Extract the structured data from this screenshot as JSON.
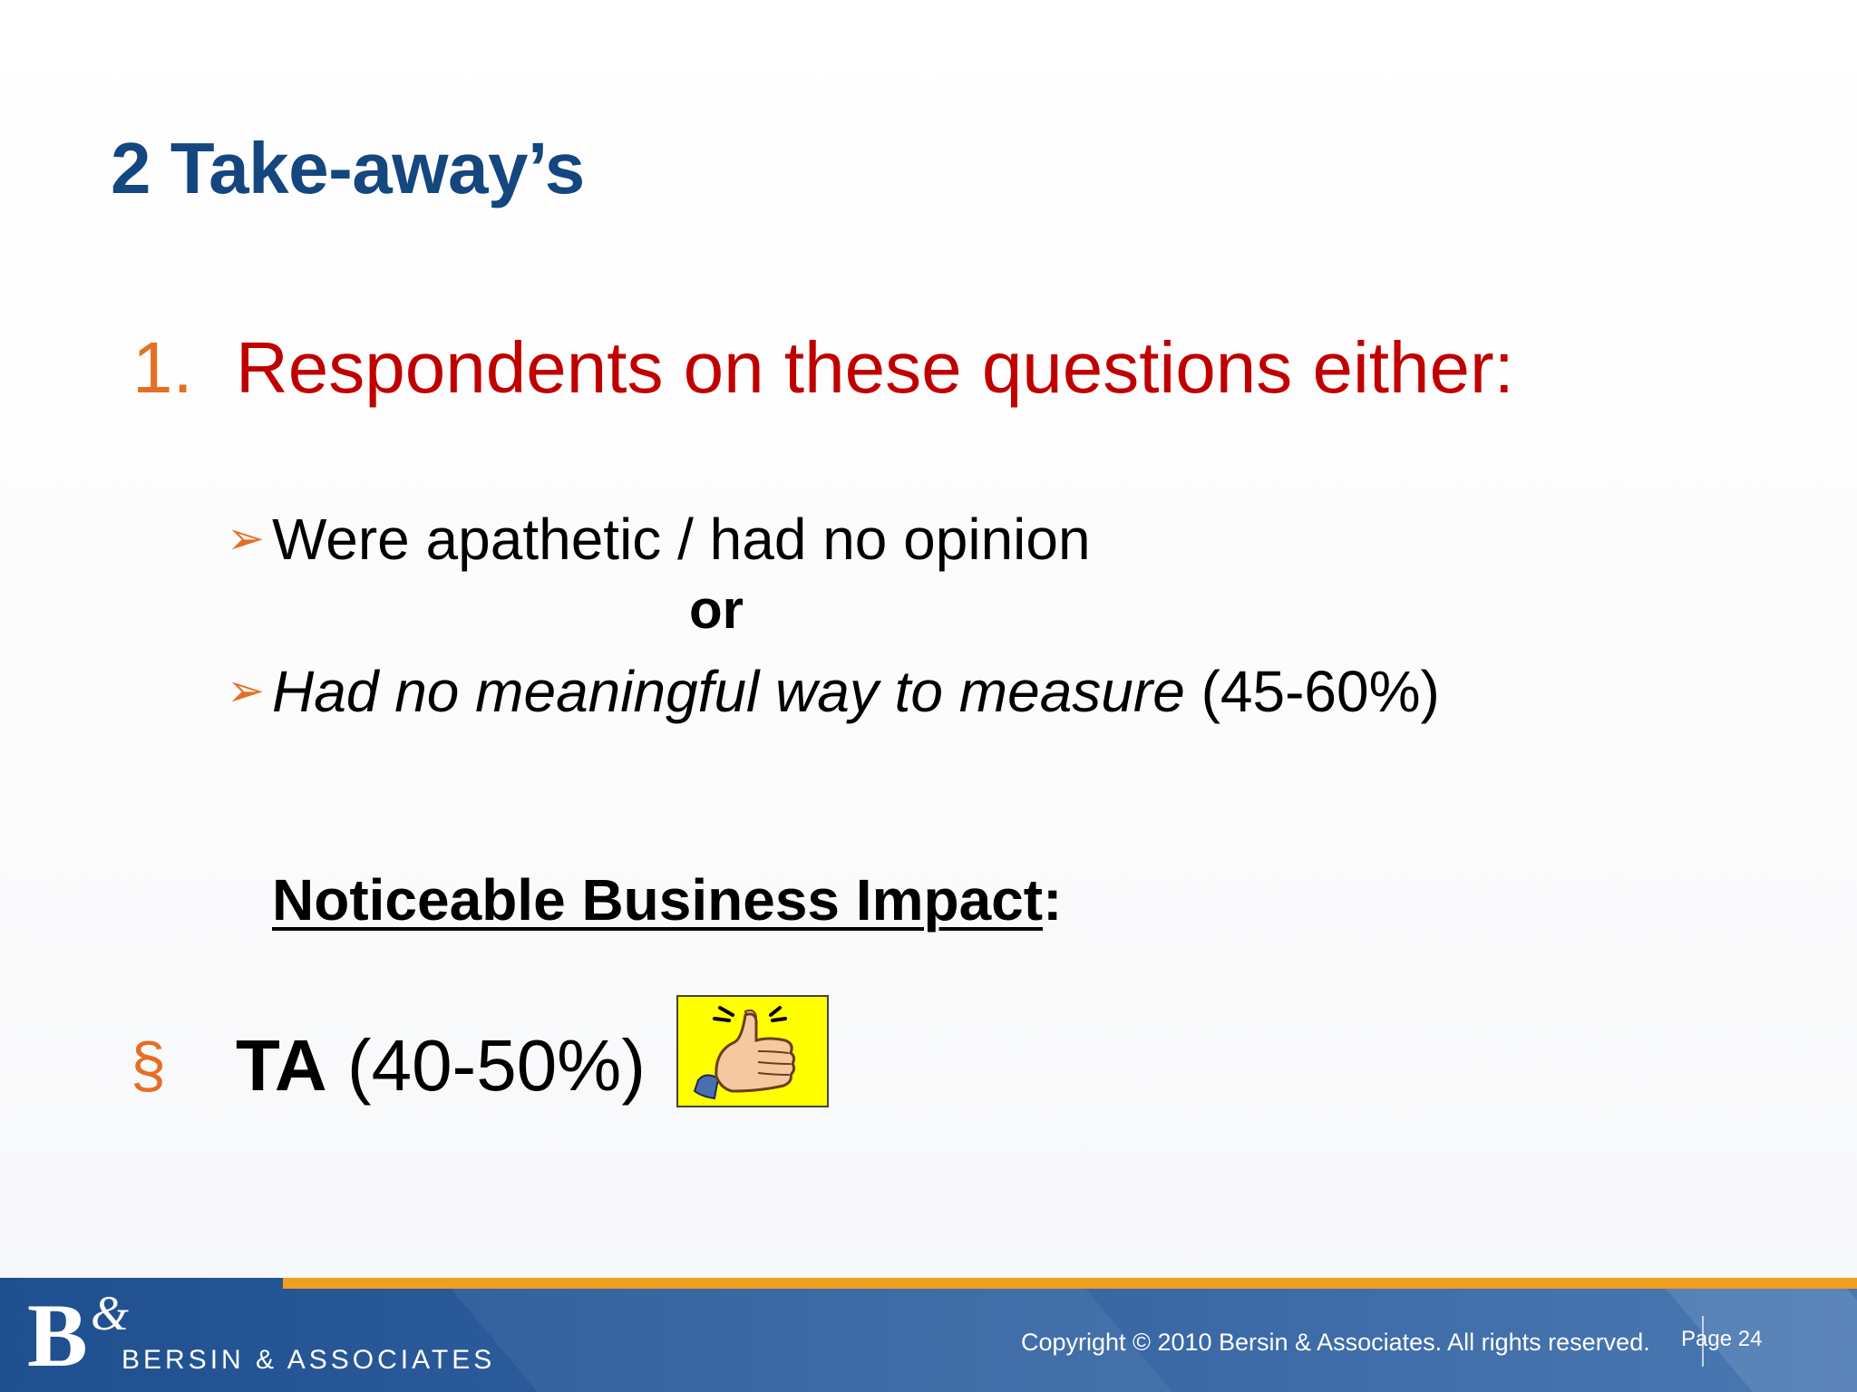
{
  "slide": {
    "title": "2 Take-away’s",
    "point1": {
      "number": "1.",
      "text": "Respondents on these questions either:"
    },
    "bullets": {
      "first": "Were apathetic / had no opinion",
      "connector": "or",
      "second_italic": "Had no meaningful way to measure",
      "second_range": " (45-60%)"
    },
    "impact": {
      "label": "Noticeable Business Impact",
      "colon": ":"
    },
    "ta": {
      "symbol": "§",
      "label": "TA",
      "range": " (40-50%)"
    },
    "icons": {
      "bullet_arrow": "arrow-bullet-icon",
      "thumbs_up": "thumbs-up-icon"
    }
  },
  "footer": {
    "logo_letters": "B",
    "logo_amp": "&",
    "logo_text": "BERSIN & ASSOCIATES",
    "copyright": "Copyright © 2010 Bersin & Associates. All rights reserved.",
    "page": "Page 24"
  },
  "colors": {
    "title": "#14467f",
    "heading": "#c00000",
    "accent": "#e46f24",
    "footer_bar": "#1f4f8f",
    "footer_stripe": "#f0a020",
    "thumb_bg": "#ffff00"
  }
}
